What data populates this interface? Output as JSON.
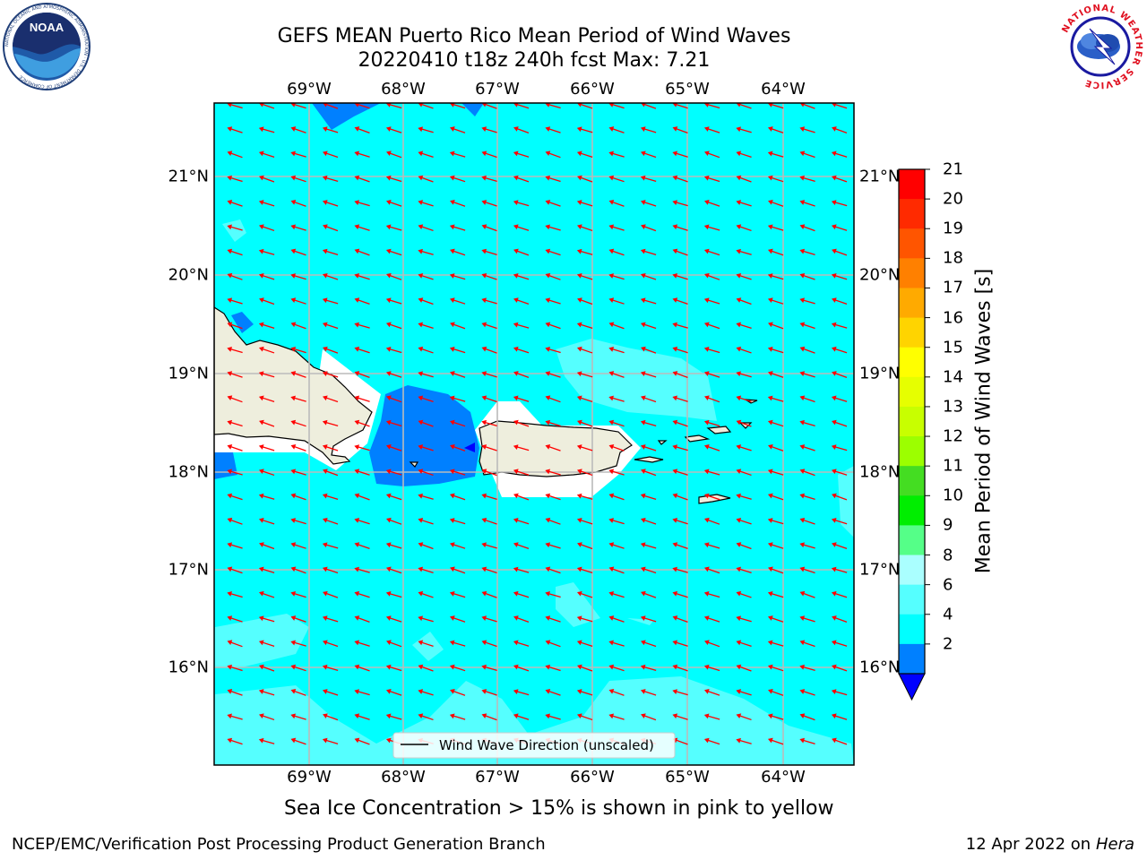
{
  "header": {
    "title_line1": "GEFS MEAN Puerto Rico Mean Period of Wind Waves",
    "title_line2": "20220410 t18z 240h fcst   Max: 7.21"
  },
  "axes": {
    "lon_labels": [
      "69°W",
      "68°W",
      "67°W",
      "66°W",
      "65°W",
      "64°W"
    ],
    "lat_labels": [
      "21°N",
      "20°N",
      "19°N",
      "18°N",
      "17°N",
      "16°N"
    ]
  },
  "legend": {
    "label": "Wind Wave Direction (unscaled)"
  },
  "colorbar": {
    "label": "Mean Period of Wind Waves [s]",
    "ticks": [
      "21",
      "20",
      "19",
      "18",
      "17",
      "16",
      "15",
      "14",
      "13",
      "12",
      "11",
      "10",
      "9",
      "8",
      "6",
      "4",
      "2"
    ],
    "colors": [
      "#ff0000",
      "#ff2a00",
      "#ff5500",
      "#ff8000",
      "#ffaa00",
      "#ffd400",
      "#ffff00",
      "#e6ff00",
      "#c8ff00",
      "#9cff00",
      "#44dd22",
      "#00ee00",
      "#55ff88",
      "#aaffff",
      "#55ffff",
      "#00ffff",
      "#0080ff"
    ],
    "under_color": "#0000ff"
  },
  "colors": {
    "ocean": "#00ffff",
    "light_sea": "#55ffff",
    "dark_sea": "#0080ff",
    "land": "#eeeedd",
    "arrow": "#ff0000"
  },
  "note": "Sea Ice Concentration > 15% is shown in pink to yellow",
  "footer": {
    "left": "NCEP/EMC/Verification Post Processing Product Generation Branch",
    "right_date": "12 Apr 2022 on",
    "right_host": "Hera"
  },
  "logos": {
    "noaa": "NOAA",
    "noaa_ring": "NATIONAL OCEANIC AND ATMOSPHERIC ADMINISTRATION · U.S. DEPARTMENT OF COMMERCE",
    "nws_ring": "NATIONAL WEATHER SERVICE"
  }
}
